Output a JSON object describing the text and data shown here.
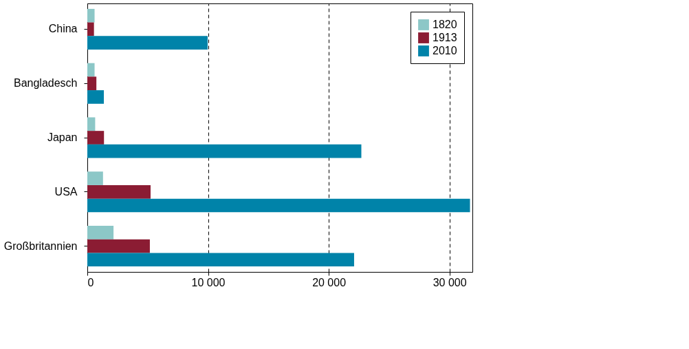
{
  "chart_data": {
    "type": "bar",
    "orientation": "horizontal",
    "categories": [
      "China",
      "Bangladesch",
      "Japan",
      "USA",
      "Großbritannien"
    ],
    "series": [
      {
        "name": "1820",
        "color": "#8cc7c7",
        "values": [
          600,
          600,
          650,
          1300,
          2170
        ]
      },
      {
        "name": "1913",
        "color": "#8b1c33",
        "values": [
          550,
          750,
          1380,
          5240,
          5180
        ]
      },
      {
        "name": "2010",
        "color": "#0083a9",
        "values": [
          9970,
          1370,
          22700,
          31700,
          22100
        ]
      }
    ],
    "xlim": [
      0,
      31900
    ],
    "xticks": [
      {
        "value": 0,
        "label": "0"
      },
      {
        "value": 10000,
        "label": "10 000"
      },
      {
        "value": 20000,
        "label": "20 000"
      },
      {
        "value": 30000,
        "label": "30 000"
      }
    ],
    "grid": "x",
    "legend": "top right"
  }
}
